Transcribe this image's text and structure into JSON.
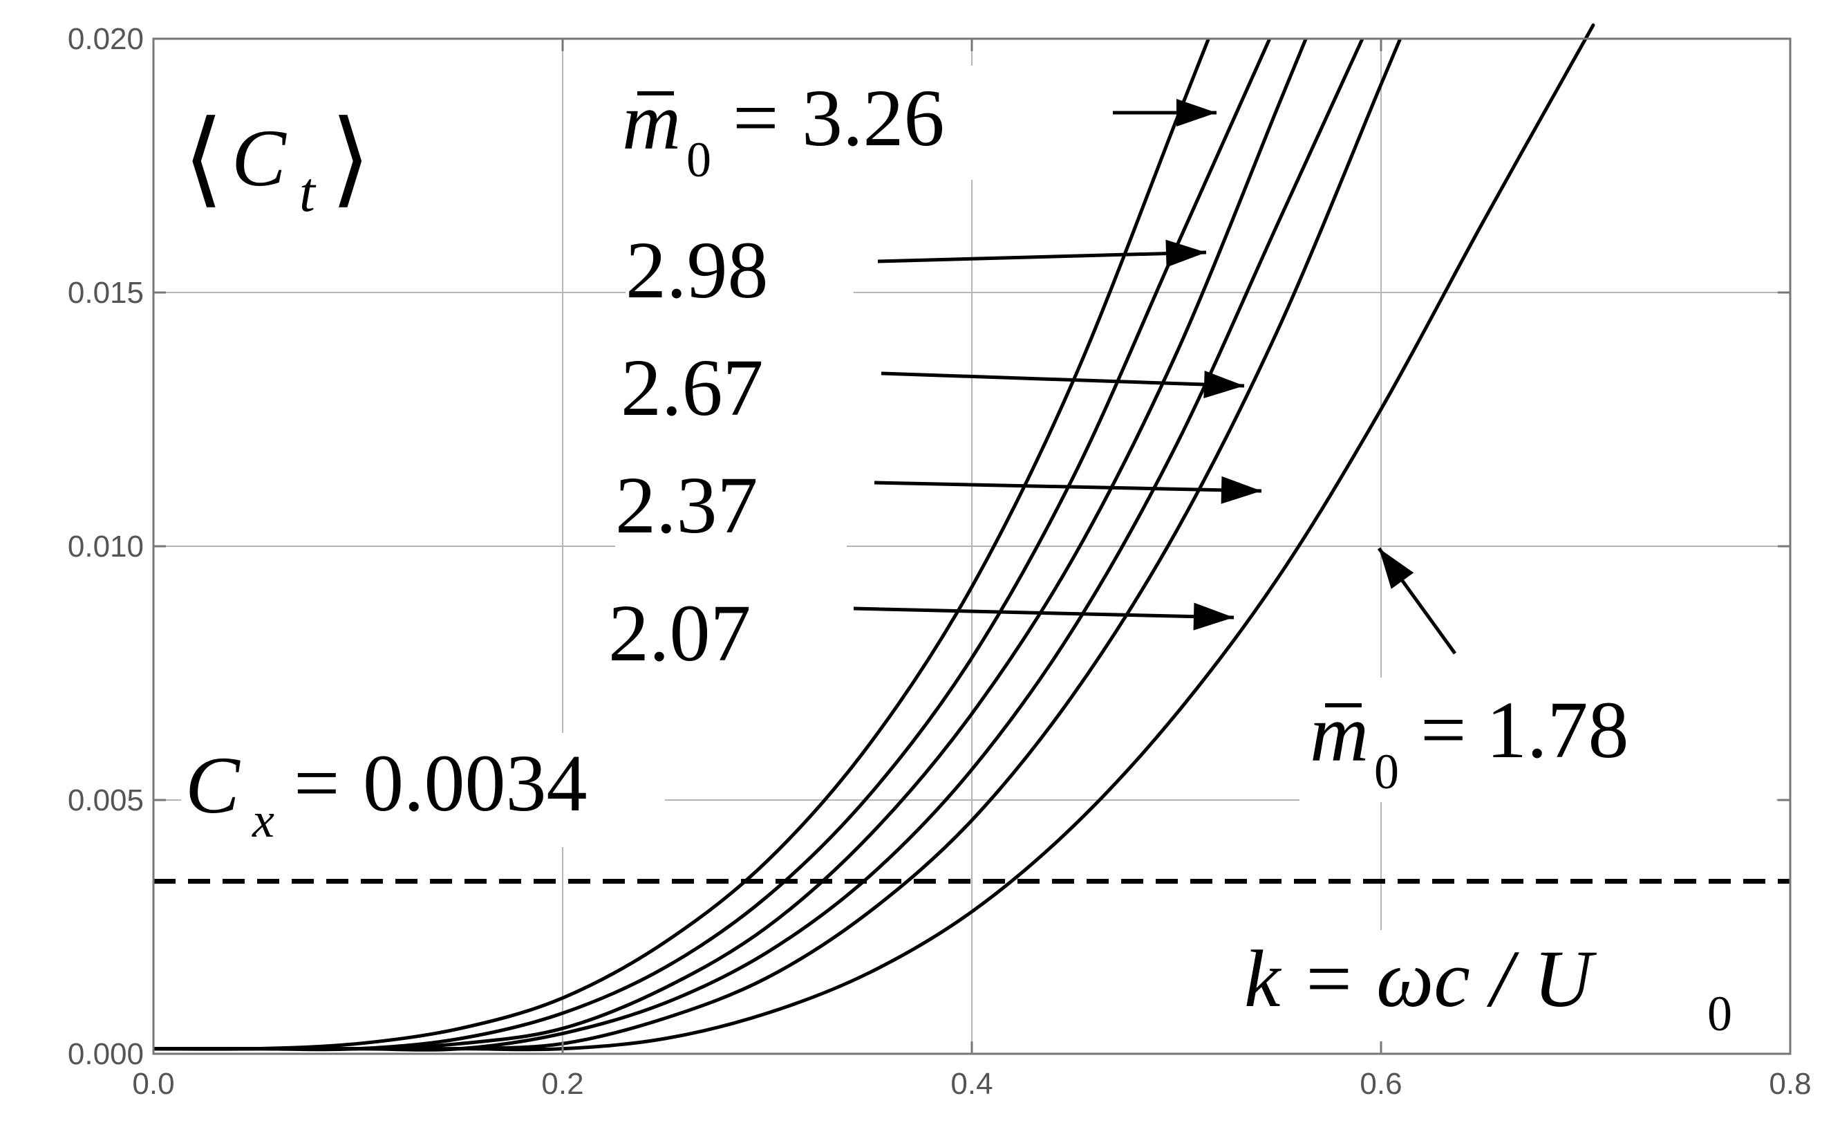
{
  "chart_data": {
    "type": "line",
    "title": "",
    "xlabel": "k = ωc / U0",
    "ylabel": "⟨Ct⟩",
    "xlim": [
      0.0,
      0.8
    ],
    "ylim": [
      0.0,
      0.02
    ],
    "x_ticks": [
      "0.0",
      "0.2",
      "0.4",
      "0.6",
      "0.8"
    ],
    "y_ticks": [
      "0.000",
      "0.005",
      "0.010",
      "0.015",
      "0.020"
    ],
    "grid": true,
    "x_samples": [
      0.0,
      0.05,
      0.1,
      0.15,
      0.2,
      0.25,
      0.3,
      0.35,
      0.4,
      0.45,
      0.5,
      0.55,
      0.6,
      0.65,
      0.7,
      0.75
    ],
    "series": [
      {
        "m0": 3.26,
        "label": "3.26",
        "values": [
          0.0001,
          0.0001,
          0.0002,
          0.0005,
          0.0011,
          0.0022,
          0.0038,
          0.0061,
          0.0092,
          0.0133,
          0.0184,
          null,
          null,
          null,
          null,
          null
        ]
      },
      {
        "m0": 2.98,
        "label": "2.98",
        "values": [
          0.0001,
          0.0001,
          0.0001,
          0.0003,
          0.0008,
          0.0017,
          0.0031,
          0.0051,
          0.0078,
          0.0114,
          0.0159,
          null,
          null,
          null,
          null,
          null
        ]
      },
      {
        "m0": 2.67,
        "label": "2.67",
        "values": [
          0.0001,
          0.0001,
          0.0001,
          0.0002,
          0.0005,
          0.0013,
          0.0025,
          0.0043,
          0.0067,
          0.0098,
          0.0138,
          0.0187,
          null,
          null,
          null,
          null
        ]
      },
      {
        "m0": 2.37,
        "label": "2.37",
        "values": [
          0.0001,
          0.0001,
          0.0001,
          0.0001,
          0.0004,
          0.001,
          0.002,
          0.0035,
          0.0056,
          0.0084,
          0.012,
          0.0164,
          null,
          null,
          null,
          null
        ]
      },
      {
        "m0": 2.07,
        "label": "2.07",
        "values": [
          0.0001,
          0.0001,
          0.0001,
          0.0001,
          0.0002,
          0.0007,
          0.0015,
          0.0028,
          0.0046,
          0.0071,
          0.0103,
          0.0143,
          0.0191,
          null,
          null,
          null
        ]
      },
      {
        "m0": 1.78,
        "label": "1.78",
        "values": [
          0.0001,
          0.0001,
          0.0001,
          0.0001,
          0.0001,
          0.0003,
          0.0008,
          0.0016,
          0.0028,
          0.0045,
          0.0067,
          0.0094,
          0.0127,
          0.0164,
          0.02,
          null
        ]
      }
    ],
    "reference_line": {
      "y": 0.0034,
      "label_value": "0.0034",
      "style": "dashed"
    },
    "annotations": {
      "ylabel_C": "C",
      "ylabel_sub": "t",
      "m0_prefix": "m",
      "m0_sub": "0",
      "equals": "=",
      "cx_C": "C",
      "cx_sub": "x",
      "k_text": "k = ωc / U",
      "k_sub": "0"
    },
    "colors": {
      "curves": "#000000",
      "grid": "#b5b5b5",
      "tick_labels": "#555555"
    }
  }
}
